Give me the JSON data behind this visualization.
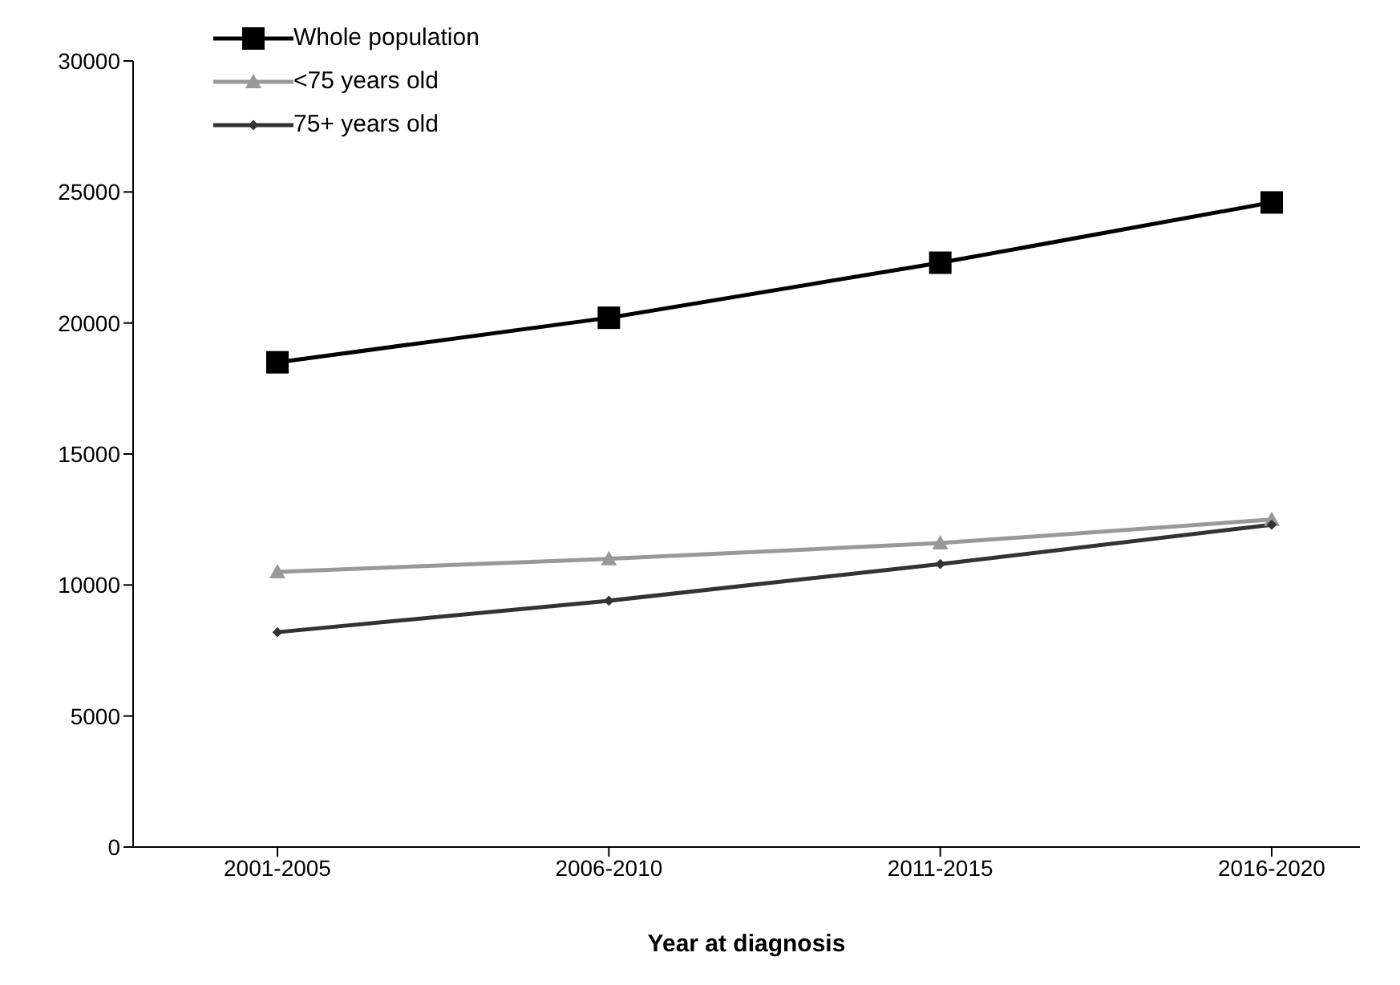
{
  "chart_data": {
    "type": "line",
    "xlabel": "Year at diagnosis",
    "categories": [
      "2001-2005",
      "2006-2010",
      "2011-2015",
      "2016-2020"
    ],
    "ylim": [
      0,
      30000
    ],
    "yticks": [
      0,
      5000,
      10000,
      15000,
      20000,
      25000,
      30000
    ],
    "grid": false,
    "legend": "top left",
    "series": [
      {
        "name": "Whole population",
        "color": "#000000",
        "marker": "square",
        "values": [
          18500,
          20200,
          22300,
          24600
        ]
      },
      {
        "name": "<75 years old",
        "color": "#999999",
        "marker": "triangle",
        "values": [
          10500,
          11000,
          11600,
          12500
        ]
      },
      {
        "name": "75+ years old",
        "color": "#333333",
        "marker": "diamond",
        "values": [
          8200,
          9400,
          10800,
          12300
        ]
      }
    ]
  }
}
